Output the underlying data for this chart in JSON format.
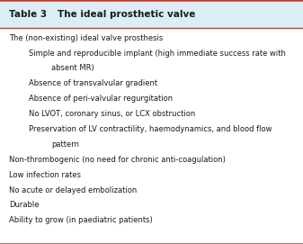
{
  "title_part1": "Table 3",
  "title_part2": "The ideal prosthetic valve",
  "header_bg": "#dceef5",
  "header_text_color": "#1a1a1a",
  "body_bg": "#ffffff",
  "border_color": "#c0392b",
  "text_color": "#1a1a1a",
  "rows": [
    {
      "text": "The (non-existing) ideal valve prosthesis",
      "indent": 0
    },
    {
      "text": "Simple and reproducible implant (high immediate success rate with",
      "indent": 1,
      "continuation": "absent MR)"
    },
    {
      "text": "Absence of transvalvular gradient",
      "indent": 1
    },
    {
      "text": "Absence of peri-valvular regurgitation",
      "indent": 1
    },
    {
      "text": "No LVOT, coronary sinus, or LCX obstruction",
      "indent": 1
    },
    {
      "text": "Preservation of LV contractility, haemodynamics, and blood flow",
      "indent": 1,
      "continuation": "pattern"
    },
    {
      "text": "Non-thrombogenic (no need for chronic anti-coagulation)",
      "indent": 0
    },
    {
      "text": "Low infection rates",
      "indent": 0
    },
    {
      "text": "No acute or delayed embolization",
      "indent": 0
    },
    {
      "text": "Durable",
      "indent": 0
    },
    {
      "text": "Ability to grow (in paediatric patients)",
      "indent": 0
    }
  ]
}
